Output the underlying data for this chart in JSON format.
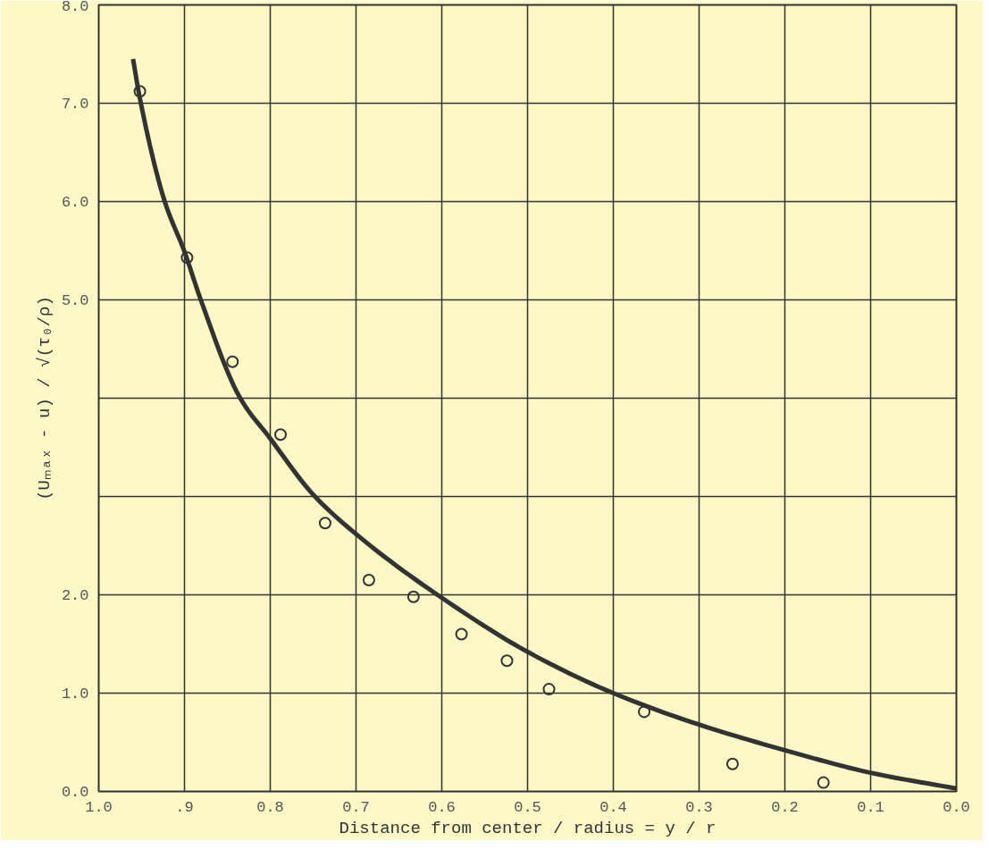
{
  "chart_data": {
    "type": "scatter",
    "xlabel": "Distance from center / radius = y / r",
    "ylabel": "(Uₘₐₓ - u) / √(τ₀/ρ)",
    "xlim": [
      1.0,
      0.0
    ],
    "ylim": [
      0,
      8
    ],
    "xticks": [
      {
        "value": 1.0,
        "label": "1.0"
      },
      {
        "value": 0.9,
        "label": ".9"
      },
      {
        "value": 0.8,
        "label": "0.8"
      },
      {
        "value": 0.7,
        "label": "0.7"
      },
      {
        "value": 0.6,
        "label": "0.6"
      },
      {
        "value": 0.5,
        "label": "0.5"
      },
      {
        "value": 0.4,
        "label": "0.4"
      },
      {
        "value": 0.3,
        "label": "0.3"
      },
      {
        "value": 0.2,
        "label": "0.2"
      },
      {
        "value": 0.1,
        "label": "0.1"
      },
      {
        "value": 0.0,
        "label": "0.0"
      }
    ],
    "yticks": [
      {
        "value": 0,
        "label": "0.0"
      },
      {
        "value": 1,
        "label": "1.0"
      },
      {
        "value": 2,
        "label": "2.0"
      },
      {
        "value": 3,
        "label": null
      },
      {
        "value": 4,
        "label": null
      },
      {
        "value": 5,
        "label": "5.0"
      },
      {
        "value": 6,
        "label": "6.0"
      },
      {
        "value": 7,
        "label": "7.0"
      },
      {
        "value": 8,
        "label": "8.0"
      }
    ],
    "grid": true,
    "series": [
      {
        "marker": "circle",
        "color": "#333333",
        "x": [
          0.952,
          0.897,
          0.844,
          0.788,
          0.736,
          0.685,
          0.633,
          0.577,
          0.524,
          0.475,
          0.364,
          0.261,
          0.155
        ],
        "values": [
          7.12,
          5.43,
          4.37,
          3.63,
          2.73,
          2.15,
          1.98,
          1.6,
          1.33,
          1.04,
          0.81,
          0.28,
          0.09
        ]
      },
      {
        "type": "line",
        "marker": "none",
        "color": "#333333",
        "line_style": "solid",
        "x": [
          0.96,
          0.952,
          0.923,
          0.9,
          0.881,
          0.835,
          0.8,
          0.75,
          0.689,
          0.6,
          0.5,
          0.4,
          0.3,
          0.2,
          0.1,
          0.0
        ],
        "values": [
          7.45,
          7.05,
          6.0,
          5.49,
          5.0,
          4.0,
          3.59,
          3.02,
          2.54,
          1.97,
          1.42,
          1.0,
          0.68,
          0.42,
          0.19,
          0.03
        ]
      }
    ]
  }
}
